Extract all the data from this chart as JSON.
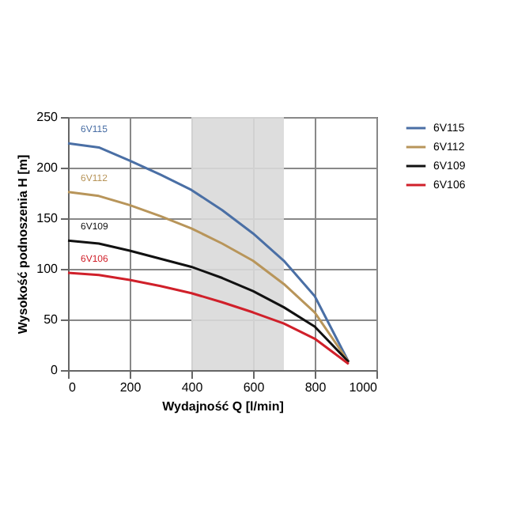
{
  "chart_data": {
    "type": "line",
    "xlabel": "Wydajność Q [l/min]",
    "ylabel": "Wysokość podnoszenia H [m]",
    "x": [
      0,
      100,
      200,
      300,
      400,
      500,
      600,
      700,
      800,
      910
    ],
    "series": [
      {
        "name": "6V115",
        "color": "#4a6fa5",
        "values": [
          224,
          220,
          207,
          193,
          178,
          158,
          135,
          108,
          73,
          8
        ]
      },
      {
        "name": "6V112",
        "color": "#b8955a",
        "values": [
          176,
          172,
          163,
          152,
          140,
          125,
          108,
          85,
          57,
          8
        ]
      },
      {
        "name": "6V109",
        "color": "#111111",
        "values": [
          128,
          125,
          118,
          110,
          102,
          91,
          78,
          62,
          43,
          8
        ]
      },
      {
        "name": "6V106",
        "color": "#d0202a",
        "values": [
          96,
          94,
          89,
          83,
          76,
          67,
          57,
          46,
          31,
          6
        ]
      }
    ],
    "annotations": [
      "6V115",
      "6V112",
      "6V109",
      "6V106"
    ],
    "bands": [
      {
        "axis": "x",
        "from": 400,
        "to": 700,
        "color": "#d9d9d9"
      }
    ],
    "xlim": [
      0,
      1000
    ],
    "xticks": [
      0,
      200,
      400,
      600,
      800,
      1000
    ],
    "ylim": [
      0,
      250
    ],
    "yticks": [
      0,
      50,
      100,
      150,
      200,
      250
    ],
    "grid": true,
    "legend": "right",
    "marker": "none",
    "line_style": "solid"
  }
}
